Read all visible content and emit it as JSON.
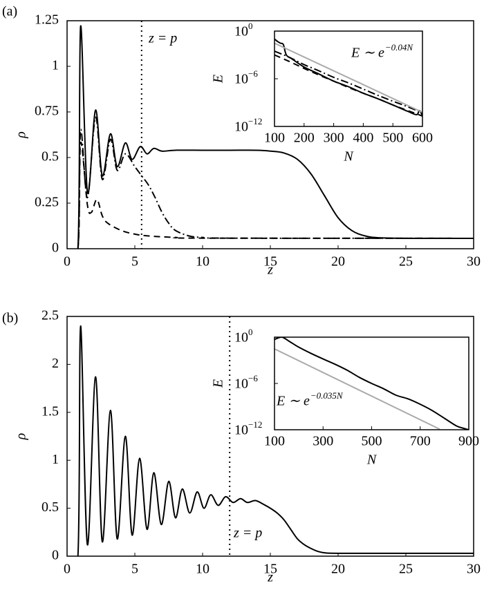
{
  "chart_data": [
    {
      "type": "line",
      "panel": "(a)",
      "xlabel": "z",
      "ylabel": "ρ",
      "xlim": [
        0,
        30
      ],
      "ylim": [
        0,
        1.25
      ],
      "xticks": [
        0,
        5,
        10,
        15,
        20,
        25,
        30
      ],
      "yticks": [
        0,
        0.25,
        0.5,
        0.75,
        1,
        1.25
      ],
      "annotations": [
        {
          "text": "z = p",
          "x": 5.5
        }
      ],
      "series": [
        {
          "color": "#000000",
          "style": "solid",
          "x": [
            0,
            0.8,
            1.0,
            1.5,
            2.1,
            2.6,
            3.2,
            3.7,
            4.3,
            4.8,
            5.4,
            5.9,
            6.4,
            7,
            8,
            10,
            12,
            14,
            15,
            16,
            17,
            18,
            19,
            20,
            21,
            22,
            23,
            25,
            30
          ],
          "values": [
            0,
            0,
            1.22,
            0.31,
            0.76,
            0.4,
            0.63,
            0.45,
            0.58,
            0.49,
            0.56,
            0.52,
            0.55,
            0.535,
            0.54,
            0.54,
            0.54,
            0.54,
            0.535,
            0.525,
            0.49,
            0.41,
            0.29,
            0.17,
            0.1,
            0.07,
            0.06,
            0.057,
            0.057
          ]
        },
        {
          "color": "#000000",
          "style": "dashdot",
          "x": [
            0,
            0.8,
            1.0,
            1.5,
            2.1,
            2.6,
            3.2,
            3.7,
            4.3,
            5,
            5.5,
            6,
            6.5,
            7,
            7.5,
            8,
            9,
            10,
            12,
            30
          ],
          "values": [
            0,
            0,
            0.65,
            0.28,
            0.72,
            0.38,
            0.6,
            0.43,
            0.52,
            0.45,
            0.4,
            0.35,
            0.28,
            0.2,
            0.14,
            0.1,
            0.07,
            0.062,
            0.058,
            0.057
          ]
        },
        {
          "color": "#000000",
          "style": "dashed",
          "x": [
            0,
            0.8,
            1.0,
            1.5,
            1.8,
            2.2,
            2.6,
            3,
            4,
            5,
            6,
            8,
            10,
            30
          ],
          "values": [
            0,
            0,
            0.58,
            0.24,
            0.2,
            0.27,
            0.18,
            0.14,
            0.1,
            0.08,
            0.07,
            0.062,
            0.058,
            0.057
          ]
        }
      ]
    },
    {
      "type": "line",
      "xlabel": "N",
      "ylabel": "E",
      "yscale": "log",
      "xlim": [
        100,
        600
      ],
      "ylim": [
        1e-12,
        1
      ],
      "xticks": [
        100,
        200,
        300,
        400,
        500,
        600
      ],
      "yticks": [
        {
          "value": 1e-12,
          "label": "10",
          "exponent": "−12"
        },
        {
          "value": 1e-06,
          "label": "10",
          "exponent": "−6"
        },
        {
          "value": 1,
          "label": "10",
          "exponent": "0"
        }
      ],
      "annotations": [
        {
          "text": "E ∼ e",
          "exponent": "−0.04N"
        }
      ],
      "series": [
        {
          "color": "#000000",
          "style": "solid",
          "x": [
            100,
            110,
            120,
            130,
            140,
            160,
            200,
            250,
            300,
            350,
            400,
            450,
            500,
            550,
            580,
            590,
            600
          ],
          "values": [
            0.1,
            0.05,
            0.03,
            0.02,
            0.001,
            0.0003,
            3e-05,
            4e-06,
            5e-07,
            1e-07,
            1.5e-08,
            3e-09,
            5e-10,
            8e-11,
            3e-11,
            1e-10,
            2e-11
          ]
        },
        {
          "color": "#000000",
          "style": "dashdot",
          "x": [
            100,
            150,
            200,
            250,
            300,
            350,
            400,
            450,
            500,
            550,
            600
          ],
          "values": [
            0.003,
            0.0005,
            6e-05,
            1e-05,
            1.5e-06,
            3e-07,
            5e-08,
            8e-09,
            1.5e-09,
            3e-10,
            5e-11
          ]
        },
        {
          "color": "#000000",
          "style": "dashed",
          "x": [
            100,
            150,
            200,
            250,
            300,
            350,
            400,
            450,
            500,
            550,
            600
          ],
          "values": [
            0.001,
            0.00015,
            2e-05,
            3e-06,
            5e-07,
            8e-08,
            1.5e-08,
            3e-09,
            5e-10,
            1e-10,
            2e-11
          ]
        },
        {
          "color": "#aaaaaa",
          "style": "solid",
          "x": [
            100,
            600
          ],
          "values": [
            0.03,
            6e-11
          ]
        }
      ]
    },
    {
      "type": "line",
      "panel": "(b)",
      "xlabel": "z",
      "ylabel": "ρ",
      "xlim": [
        0,
        30
      ],
      "ylim": [
        0,
        2.5
      ],
      "xticks": [
        0,
        5,
        10,
        15,
        20,
        25,
        30
      ],
      "yticks": [
        0,
        0.5,
        1,
        1.5,
        2,
        2.5
      ],
      "annotations": [
        {
          "text": "z = p",
          "x": 12
        }
      ],
      "series": [
        {
          "color": "#000000",
          "style": "solid",
          "x": [
            0,
            0.8,
            1.0,
            1.5,
            2.1,
            2.6,
            3.2,
            3.7,
            4.3,
            4.8,
            5.35,
            5.9,
            6.4,
            6.95,
            7.5,
            8.0,
            8.5,
            9.05,
            9.6,
            10.1,
            10.6,
            11.15,
            11.7,
            12.25,
            12.8,
            13.3,
            13.9,
            14.5,
            15,
            15.5,
            16,
            16.5,
            17,
            17.5,
            18,
            18.5,
            19,
            20,
            25,
            30
          ],
          "values": [
            0,
            0,
            2.4,
            0.12,
            1.87,
            0.15,
            1.52,
            0.18,
            1.25,
            0.22,
            1.02,
            0.28,
            0.87,
            0.33,
            0.78,
            0.4,
            0.7,
            0.45,
            0.67,
            0.5,
            0.64,
            0.53,
            0.62,
            0.56,
            0.6,
            0.56,
            0.58,
            0.54,
            0.5,
            0.45,
            0.38,
            0.28,
            0.18,
            0.12,
            0.08,
            0.05,
            0.035,
            0.03,
            0.03,
            0.03
          ]
        }
      ]
    },
    {
      "type": "line",
      "xlabel": "N",
      "ylabel": "E",
      "yscale": "log",
      "xlim": [
        100,
        900
      ],
      "ylim": [
        1e-12,
        1
      ],
      "xticks": [
        100,
        300,
        500,
        700,
        900
      ],
      "yticks": [
        {
          "value": 1e-12,
          "label": "10",
          "exponent": "−12"
        },
        {
          "value": 1e-06,
          "label": "10",
          "exponent": "−6"
        },
        {
          "value": 1,
          "label": "10",
          "exponent": "0"
        }
      ],
      "annotations": [
        {
          "text": "E ∼ e",
          "exponent": "−0.035N"
        }
      ],
      "series": [
        {
          "color": "#000000",
          "style": "solid",
          "x": [
            100,
            130,
            160,
            200,
            250,
            300,
            350,
            400,
            450,
            500,
            550,
            600,
            650,
            700,
            750,
            800,
            850,
            880,
            900
          ],
          "values": [
            0.5,
            1,
            0.3,
            0.05,
            0.008,
            0.0015,
            0.0003,
            5e-05,
            6e-06,
            1e-06,
            2e-07,
            3e-08,
            1e-08,
            2e-09,
            3e-10,
            3e-11,
            3e-12,
            1.5e-12,
            1e-12
          ]
        },
        {
          "color": "#aaaaaa",
          "style": "solid",
          "x": [
            100,
            780
          ],
          "values": [
            0.03,
            1.2e-12
          ]
        }
      ]
    }
  ]
}
